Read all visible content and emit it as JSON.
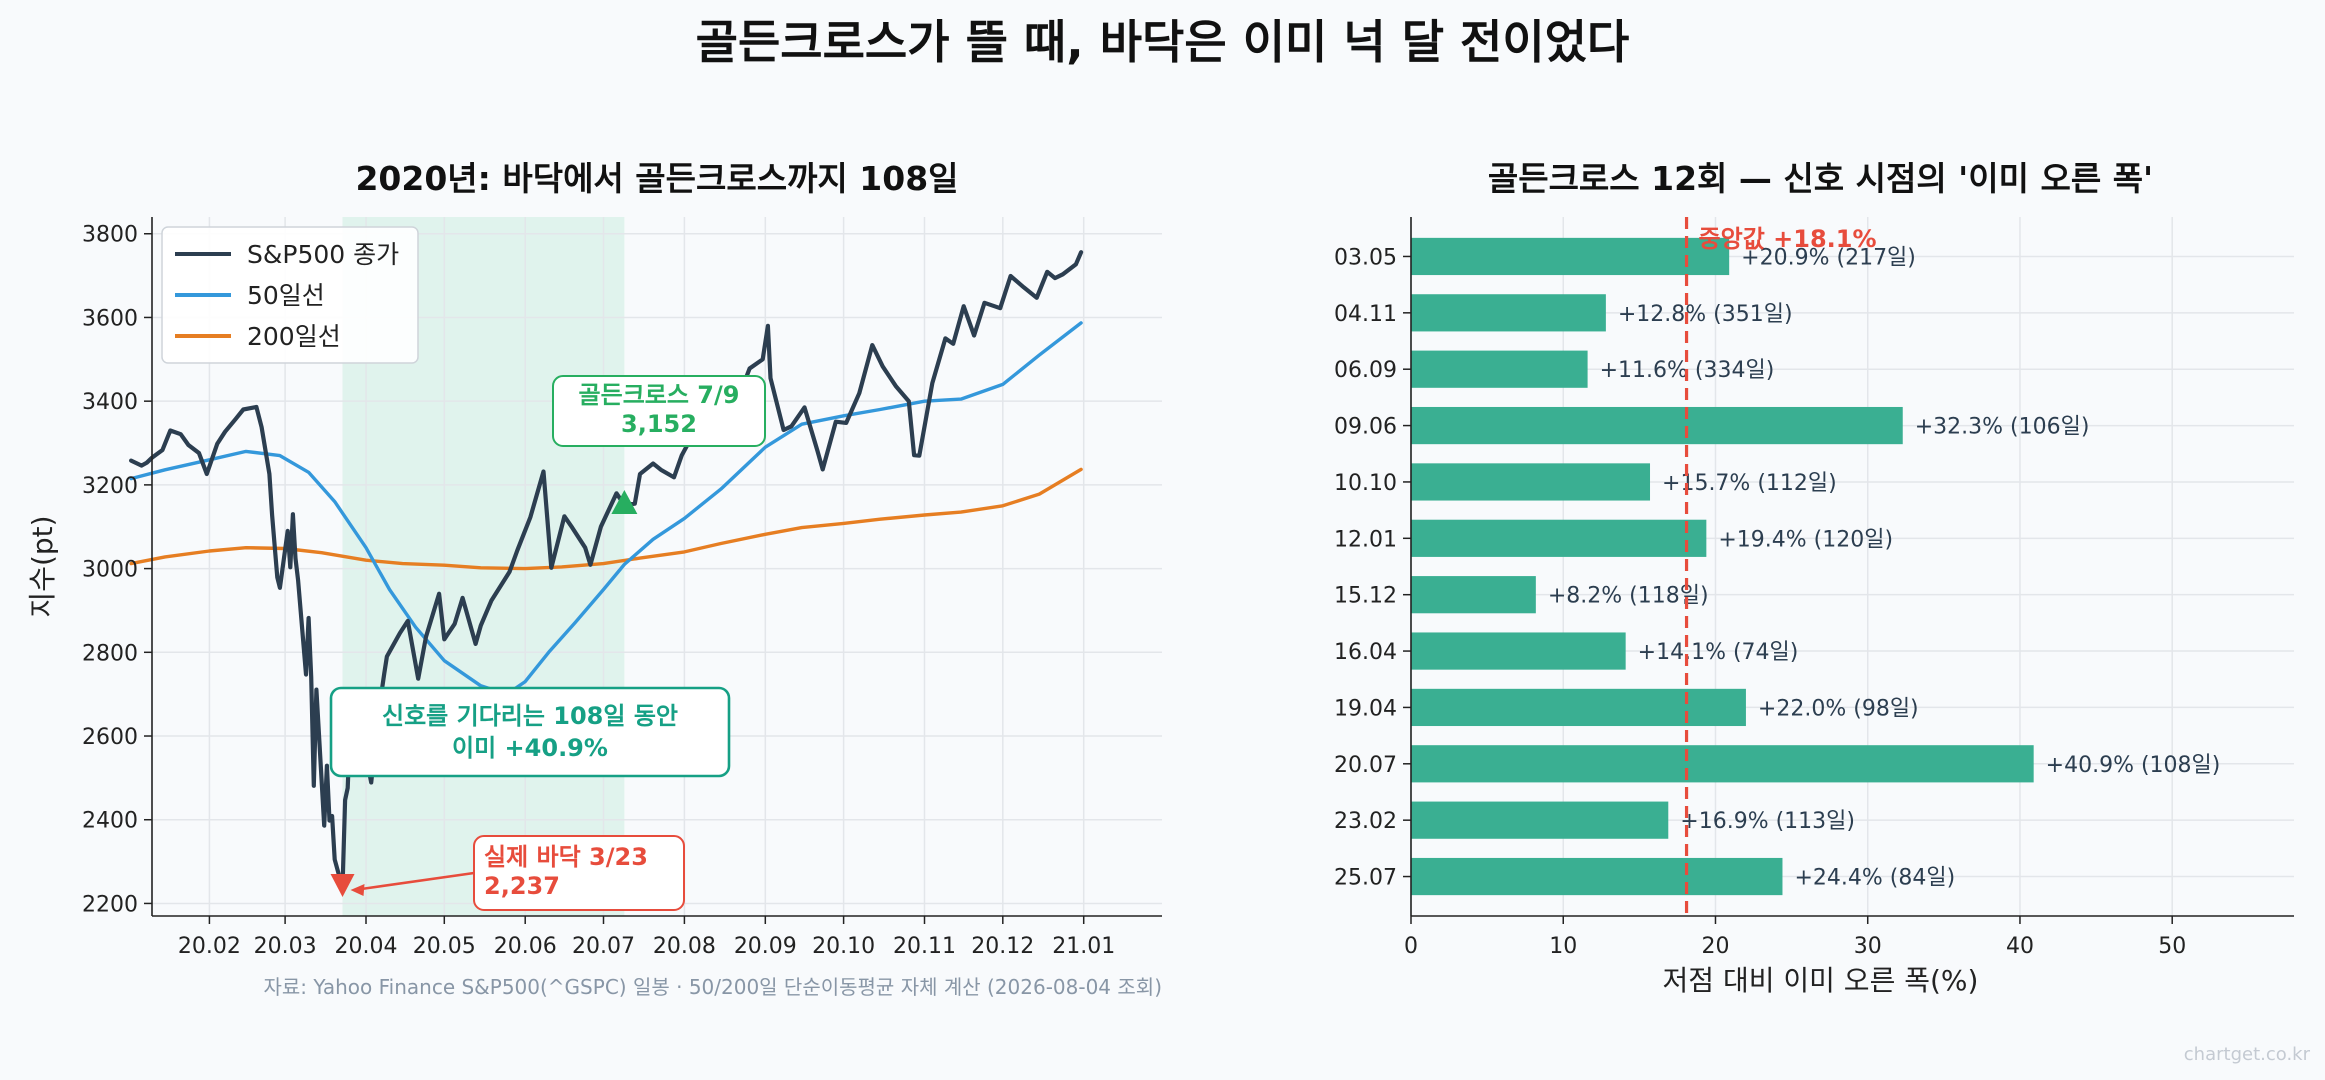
{
  "title": "골든크로스가 뜰 때, 바닥은 이미 넉 달 전이었다",
  "source": "자료: Yahoo Finance S&P500(^GSPC) 일봉 · 50/200일 단순이동평균 자체 계산 (2026-08-04 조회)",
  "watermark": "chartget.co.kr",
  "colors": {
    "price": "#2c3e50",
    "ma50": "#3498db",
    "ma200": "#e67e22",
    "bar": "#3aaf92",
    "median": "#e74c3c",
    "golden": "#27ae60",
    "waiting": "#16a085",
    "shade": "#d5efe7"
  },
  "chart_data": [
    {
      "type": "line",
      "title": "2020년: 바닥에서 골든크로스까지 108일",
      "xlabel": "",
      "ylabel": "지수(pt)",
      "ylim": [
        2170,
        3840
      ],
      "xlim": [
        "2020-01-10",
        "2021-01-31"
      ],
      "x_ticks": [
        "20.02",
        "20.03",
        "20.04",
        "20.05",
        "20.06",
        "20.07",
        "20.08",
        "20.09",
        "20.10",
        "20.11",
        "20.12",
        "21.01"
      ],
      "y_ticks": [
        2200,
        2400,
        2600,
        2800,
        3000,
        3200,
        3400,
        3600,
        3800
      ],
      "grid": true,
      "legend_position": "top-left",
      "shaded_range": [
        "2020-03-23",
        "2020-07-09"
      ],
      "series": [
        {
          "name": "S&P500 종가",
          "key": "price",
          "points": [
            [
              "2020-01-02",
              3258
            ],
            [
              "2020-01-06",
              3246
            ],
            [
              "2020-01-08",
              3253
            ],
            [
              "2020-01-10",
              3265
            ],
            [
              "2020-01-14",
              3283
            ],
            [
              "2020-01-17",
              3330
            ],
            [
              "2020-01-21",
              3321
            ],
            [
              "2020-01-24",
              3295
            ],
            [
              "2020-01-28",
              3276
            ],
            [
              "2020-01-31",
              3226
            ],
            [
              "2020-02-04",
              3298
            ],
            [
              "2020-02-07",
              3327
            ],
            [
              "2020-02-11",
              3357
            ],
            [
              "2020-02-14",
              3380
            ],
            [
              "2020-02-19",
              3386
            ],
            [
              "2020-02-21",
              3338
            ],
            [
              "2020-02-24",
              3226
            ],
            [
              "2020-02-25",
              3128
            ],
            [
              "2020-02-27",
              2979
            ],
            [
              "2020-02-28",
              2954
            ],
            [
              "2020-03-02",
              3090
            ],
            [
              "2020-03-03",
              3003
            ],
            [
              "2020-03-04",
              3130
            ],
            [
              "2020-03-05",
              3024
            ],
            [
              "2020-03-06",
              2972
            ],
            [
              "2020-03-09",
              2747
            ],
            [
              "2020-03-10",
              2882
            ],
            [
              "2020-03-11",
              2741
            ],
            [
              "2020-03-12",
              2481
            ],
            [
              "2020-03-13",
              2711
            ],
            [
              "2020-03-16",
              2386
            ],
            [
              "2020-03-17",
              2529
            ],
            [
              "2020-03-18",
              2398
            ],
            [
              "2020-03-19",
              2409
            ],
            [
              "2020-03-20",
              2305
            ],
            [
              "2020-03-23",
              2237
            ],
            [
              "2020-03-24",
              2447
            ],
            [
              "2020-03-25",
              2476
            ],
            [
              "2020-03-26",
              2630
            ],
            [
              "2020-03-27",
              2541
            ],
            [
              "2020-03-31",
              2585
            ],
            [
              "2020-04-03",
              2489
            ],
            [
              "2020-04-06",
              2664
            ],
            [
              "2020-04-08",
              2750
            ],
            [
              "2020-04-09",
              2790
            ],
            [
              "2020-04-14",
              2846
            ],
            [
              "2020-04-17",
              2875
            ],
            [
              "2020-04-21",
              2737
            ],
            [
              "2020-04-24",
              2837
            ],
            [
              "2020-04-29",
              2940
            ],
            [
              "2020-05-01",
              2831
            ],
            [
              "2020-05-05",
              2868
            ],
            [
              "2020-05-08",
              2930
            ],
            [
              "2020-05-13",
              2820
            ],
            [
              "2020-05-15",
              2864
            ],
            [
              "2020-05-19",
              2923
            ],
            [
              "2020-05-26",
              2992
            ],
            [
              "2020-05-29",
              3044
            ],
            [
              "2020-06-03",
              3123
            ],
            [
              "2020-06-08",
              3232
            ],
            [
              "2020-06-11",
              3002
            ],
            [
              "2020-06-16",
              3125
            ],
            [
              "2020-06-19",
              3098
            ],
            [
              "2020-06-24",
              3050
            ],
            [
              "2020-06-26",
              3009
            ],
            [
              "2020-06-30",
              3100
            ],
            [
              "2020-07-06",
              3180
            ],
            [
              "2020-07-09",
              3152
            ],
            [
              "2020-07-13",
              3155
            ],
            [
              "2020-07-15",
              3226
            ],
            [
              "2020-07-20",
              3251
            ],
            [
              "2020-07-23",
              3236
            ],
            [
              "2020-07-28",
              3218
            ],
            [
              "2020-07-31",
              3271
            ],
            [
              "2020-08-05",
              3328
            ],
            [
              "2020-08-12",
              3380
            ],
            [
              "2020-08-18",
              3389
            ],
            [
              "2020-08-21",
              3397
            ],
            [
              "2020-08-26",
              3478
            ],
            [
              "2020-08-31",
              3500
            ],
            [
              "2020-09-02",
              3580
            ],
            [
              "2020-09-03",
              3455
            ],
            [
              "2020-09-08",
              3331
            ],
            [
              "2020-09-11",
              3340
            ],
            [
              "2020-09-16",
              3385
            ],
            [
              "2020-09-21",
              3281
            ],
            [
              "2020-09-23",
              3237
            ],
            [
              "2020-09-28",
              3351
            ],
            [
              "2020-10-02",
              3348
            ],
            [
              "2020-10-07",
              3419
            ],
            [
              "2020-10-12",
              3534
            ],
            [
              "2020-10-16",
              3483
            ],
            [
              "2020-10-21",
              3436
            ],
            [
              "2020-10-26",
              3400
            ],
            [
              "2020-10-28",
              3271
            ],
            [
              "2020-10-30",
              3270
            ],
            [
              "2020-11-04",
              3443
            ],
            [
              "2020-11-09",
              3550
            ],
            [
              "2020-11-12",
              3537
            ],
            [
              "2020-11-16",
              3627
            ],
            [
              "2020-11-20",
              3557
            ],
            [
              "2020-11-24",
              3635
            ],
            [
              "2020-11-30",
              3622
            ],
            [
              "2020-12-04",
              3699
            ],
            [
              "2020-12-09",
              3672
            ],
            [
              "2020-12-14",
              3647
            ],
            [
              "2020-12-18",
              3709
            ],
            [
              "2020-12-21",
              3694
            ],
            [
              "2020-12-24",
              3703
            ],
            [
              "2020-12-29",
              3727
            ],
            [
              "2020-12-31",
              3756
            ]
          ]
        },
        {
          "name": "50일선",
          "key": "ma50",
          "points": [
            [
              "2020-01-02",
              3215
            ],
            [
              "2020-01-15",
              3236
            ],
            [
              "2020-02-01",
              3260
            ],
            [
              "2020-02-15",
              3280
            ],
            [
              "2020-02-28",
              3270
            ],
            [
              "2020-03-10",
              3230
            ],
            [
              "2020-03-20",
              3160
            ],
            [
              "2020-04-01",
              3050
            ],
            [
              "2020-04-10",
              2950
            ],
            [
              "2020-04-20",
              2860
            ],
            [
              "2020-05-01",
              2780
            ],
            [
              "2020-05-15",
              2720
            ],
            [
              "2020-05-25",
              2700
            ],
            [
              "2020-06-01",
              2730
            ],
            [
              "2020-06-10",
              2800
            ],
            [
              "2020-06-20",
              2870
            ],
            [
              "2020-07-01",
              2950
            ],
            [
              "2020-07-09",
              3010
            ],
            [
              "2020-07-20",
              3070
            ],
            [
              "2020-08-01",
              3120
            ],
            [
              "2020-08-15",
              3190
            ],
            [
              "2020-09-01",
              3290
            ],
            [
              "2020-09-15",
              3345
            ],
            [
              "2020-10-01",
              3365
            ],
            [
              "2020-10-15",
              3380
            ],
            [
              "2020-11-01",
              3400
            ],
            [
              "2020-11-15",
              3405
            ],
            [
              "2020-12-01",
              3440
            ],
            [
              "2020-12-15",
              3510
            ],
            [
              "2020-12-31",
              3587
            ]
          ]
        },
        {
          "name": "200일선",
          "key": "ma200",
          "points": [
            [
              "2020-01-02",
              3012
            ],
            [
              "2020-01-15",
              3028
            ],
            [
              "2020-02-01",
              3042
            ],
            [
              "2020-02-15",
              3050
            ],
            [
              "2020-03-01",
              3048
            ],
            [
              "2020-03-15",
              3038
            ],
            [
              "2020-04-01",
              3020
            ],
            [
              "2020-04-15",
              3012
            ],
            [
              "2020-05-01",
              3008
            ],
            [
              "2020-05-15",
              3002
            ],
            [
              "2020-06-01",
              3000
            ],
            [
              "2020-06-15",
              3004
            ],
            [
              "2020-07-01",
              3012
            ],
            [
              "2020-07-15",
              3025
            ],
            [
              "2020-08-01",
              3040
            ],
            [
              "2020-08-15",
              3060
            ],
            [
              "2020-09-01",
              3082
            ],
            [
              "2020-09-15",
              3098
            ],
            [
              "2020-10-01",
              3108
            ],
            [
              "2020-10-15",
              3118
            ],
            [
              "2020-11-01",
              3128
            ],
            [
              "2020-11-15",
              3135
            ],
            [
              "2020-12-01",
              3150
            ],
            [
              "2020-12-15",
              3178
            ],
            [
              "2020-12-31",
              3237
            ]
          ]
        }
      ],
      "annotations": {
        "golden_cross": {
          "label": "골든크로스 7/9",
          "value_label": "3,152",
          "date": "2020-07-09",
          "value": 3152
        },
        "bottom": {
          "label": "실제 바닥 3/23",
          "value_label": "2,237",
          "date": "2020-03-23",
          "value": 2237
        },
        "waiting": {
          "line1": "신호를 기다리는 108일 동안",
          "line2": "이미 +40.9%"
        }
      }
    },
    {
      "type": "bar",
      "orientation": "horizontal",
      "title": "골든크로스 12회 — 신호 시점의 '이미 오른 폭'",
      "xlabel": "저점 대비 이미 오른 폭(%)",
      "ylabel": "",
      "xlim": [
        0,
        58
      ],
      "x_ticks": [
        0,
        10,
        20,
        30,
        40,
        50
      ],
      "grid": true,
      "categories": [
        "03.05",
        "04.11",
        "06.09",
        "09.06",
        "10.10",
        "12.01",
        "15.12",
        "16.04",
        "19.04",
        "20.07",
        "23.02",
        "25.07"
      ],
      "values": [
        20.9,
        12.8,
        11.6,
        32.3,
        15.7,
        19.4,
        8.2,
        14.1,
        22.0,
        40.9,
        16.9,
        24.4
      ],
      "value_labels": [
        "+20.9%",
        "+12.8%",
        "+11.6%",
        "+32.3%",
        "+15.7%",
        "+19.4%",
        "+8.2%",
        "+14.1%",
        "+22.0%",
        "+40.9%",
        "+16.9%",
        "+24.4%"
      ],
      "day_labels": [
        "(217일)",
        "(351일)",
        "(334일)",
        "(106일)",
        "(112일)",
        "(120일)",
        "(118일)",
        "(74일)",
        "(98일)",
        "(108일)",
        "(113일)",
        "(84일)"
      ],
      "median": 18.1,
      "median_label": "중앙값 +18.1%"
    }
  ]
}
